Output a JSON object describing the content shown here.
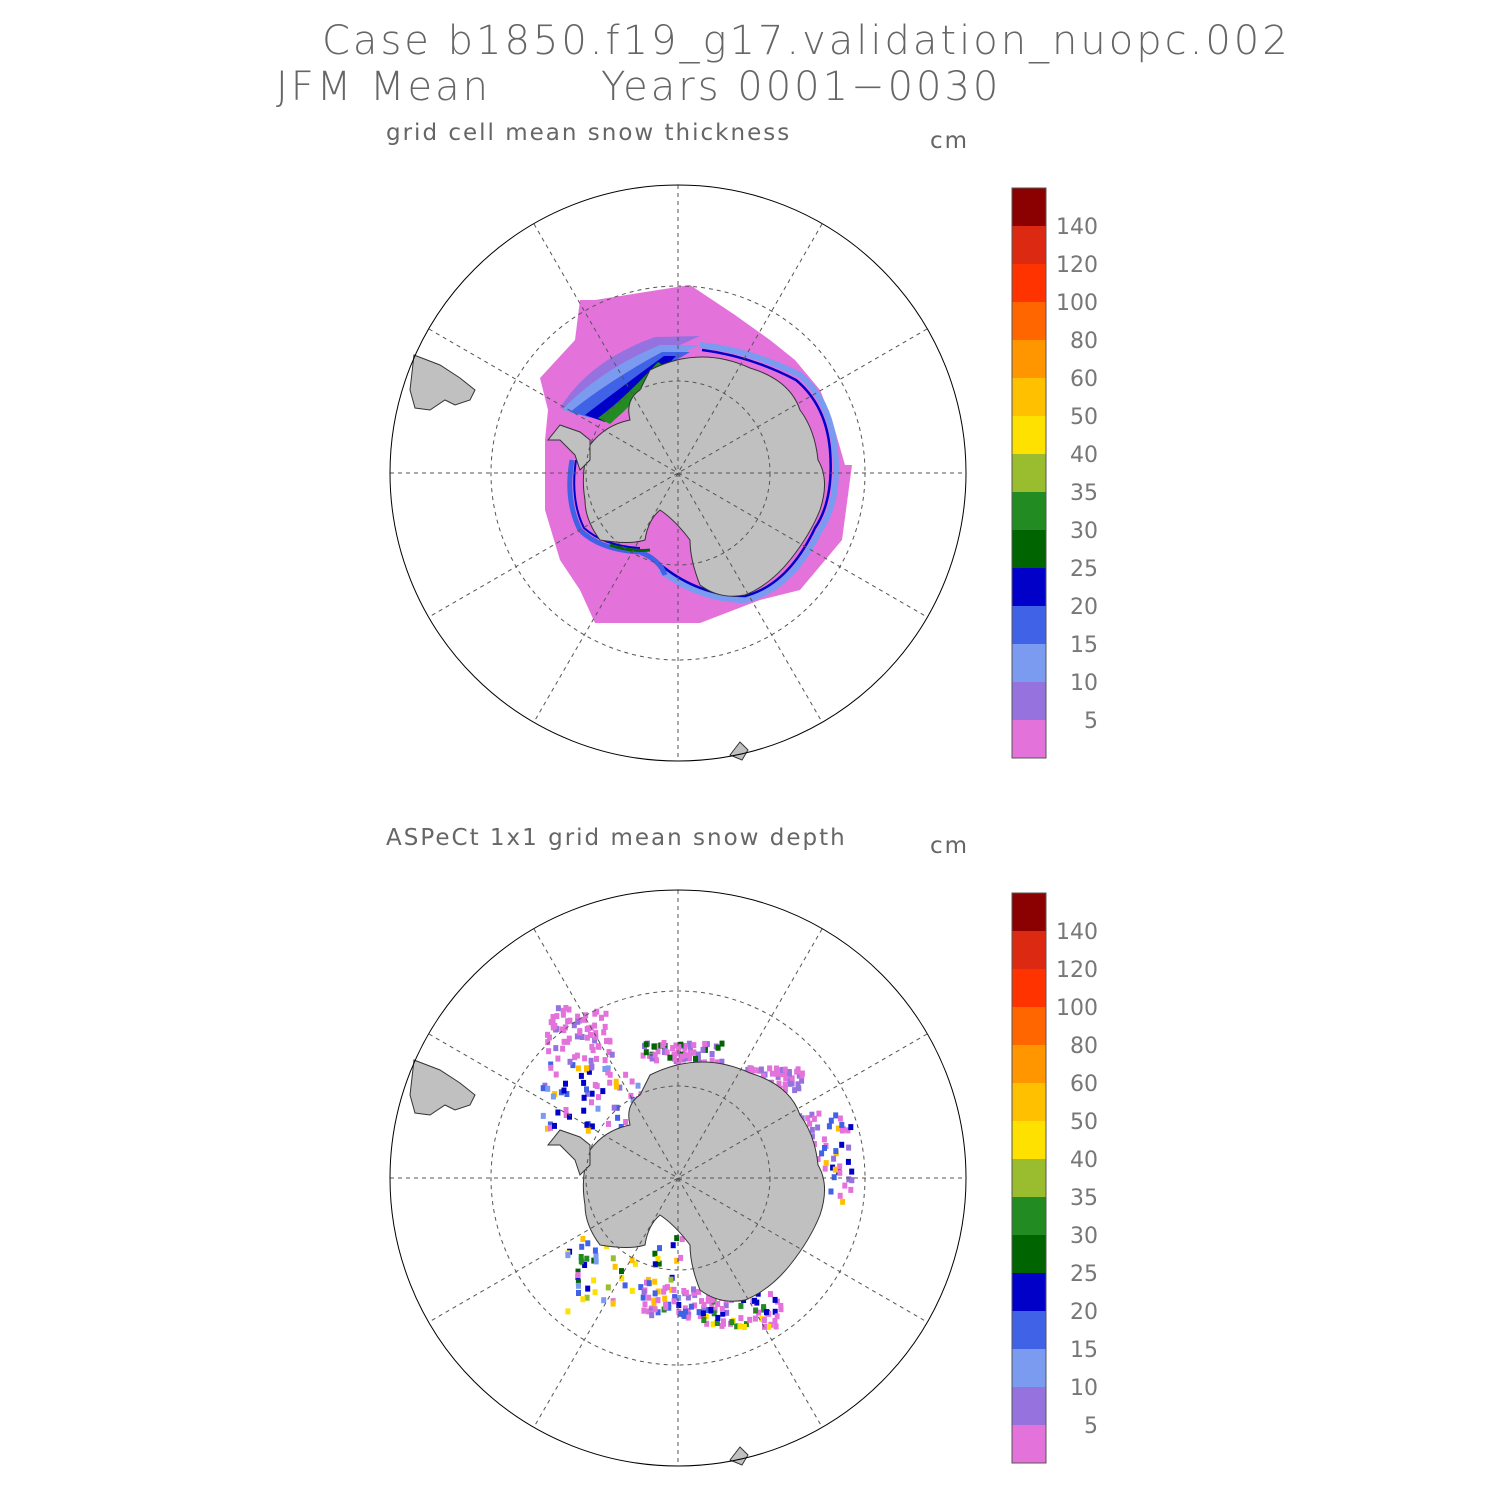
{
  "header": {
    "case_line": "Case b1850.f19_g17.validation_nuopc.002",
    "period_line": "JFM Mean       Years 0001−0030"
  },
  "colorbar": {
    "colors": [
      "#e373db",
      "#9572de",
      "#7a9bf0",
      "#3f62e6",
      "#0000c8",
      "#006400",
      "#228b22",
      "#9abd30",
      "#ffe100",
      "#ffc000",
      "#ff9600",
      "#ff6600",
      "#ff3300",
      "#dc2a12",
      "#8b0000"
    ],
    "labels": [
      "5",
      "10",
      "15",
      "20",
      "25",
      "30",
      "35",
      "40",
      "50",
      "60",
      "80",
      "100",
      "120",
      "140"
    ]
  },
  "panels": [
    {
      "id": "model",
      "title": "grid cell mean snow thickness",
      "units": "cm"
    },
    {
      "id": "obs",
      "title": "ASPeCt 1x1 grid mean snow depth",
      "units": "cm"
    }
  ],
  "map_colors": {
    "land": "#c0c0c0",
    "coast": "#333333",
    "grid": "#555555",
    "frame": "#000000"
  }
}
